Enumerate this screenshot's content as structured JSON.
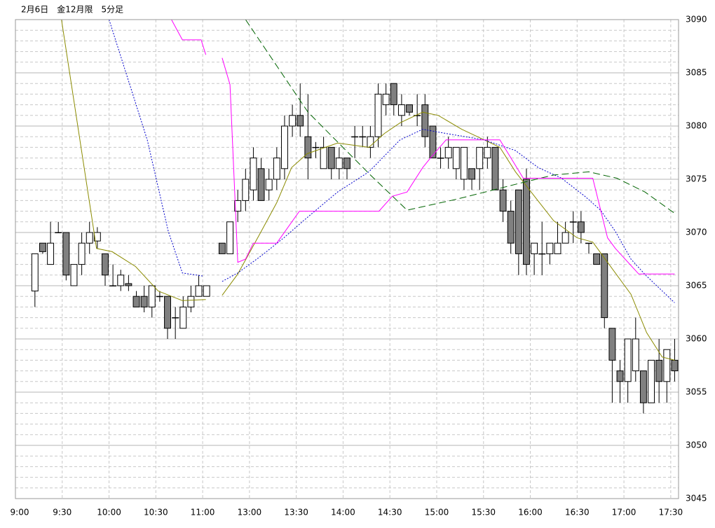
{
  "chart_data": {
    "type": "candlestick",
    "title": "2月6日　金12月限　5分足",
    "xlim": [
      -2.5,
      82.5
    ],
    "ylim": [
      3045,
      3090
    ],
    "yticks": [
      3045,
      3050,
      3055,
      3060,
      3065,
      3070,
      3075,
      3080,
      3085,
      3090
    ],
    "xticks": [
      {
        "value": -2.5,
        "label": "9:00"
      },
      {
        "value": 3.5,
        "label": "9:30"
      },
      {
        "value": 9.5,
        "label": "10:00"
      },
      {
        "value": 15.5,
        "label": "10:30"
      },
      {
        "value": 21.5,
        "label": "11:00"
      },
      {
        "value": 27.5,
        "label": "13:00"
      },
      {
        "value": 33.5,
        "label": "13:30"
      },
      {
        "value": 39.5,
        "label": "14:00"
      },
      {
        "value": 45.5,
        "label": "14:30"
      },
      {
        "value": 51.5,
        "label": "15:00"
      },
      {
        "value": 57.5,
        "label": "15:30"
      },
      {
        "value": 63.5,
        "label": "16:00"
      },
      {
        "value": 69.5,
        "label": "16:30"
      },
      {
        "value": 75.5,
        "label": "17:00"
      },
      {
        "value": 81.5,
        "label": "17:30"
      }
    ],
    "grid": true,
    "up_color": "#ffffff",
    "down_color": "#808080",
    "candles": {
      "x": [
        0,
        1,
        2,
        3,
        4,
        5,
        6,
        7,
        8,
        9,
        10,
        11,
        12,
        13,
        14,
        15,
        16,
        17,
        18,
        19,
        20,
        21,
        22,
        24,
        25,
        26,
        27,
        28,
        29,
        30,
        31,
        32,
        33,
        34,
        35,
        36,
        37,
        38,
        39,
        40,
        41,
        42,
        43,
        44,
        45,
        46,
        47,
        48,
        49,
        50,
        51,
        52,
        53,
        54,
        55,
        56,
        57,
        58,
        59,
        60,
        61,
        62,
        63,
        64,
        65,
        66,
        67,
        68,
        69,
        70,
        71,
        72,
        73,
        74,
        75,
        76,
        77,
        78,
        79,
        80,
        81,
        82
      ],
      "open": [
        3064.5,
        3069,
        3067,
        3070,
        3070,
        3065,
        3067,
        3069,
        3069.2,
        3068,
        3065,
        3065,
        3065.2,
        3064,
        3064,
        3063,
        3064,
        3064,
        3062,
        3061,
        3063,
        3064,
        3064,
        3069,
        3068,
        3072,
        3073,
        3074,
        3076,
        3074,
        3075,
        3076,
        3080,
        3081,
        3079,
        3078,
        3076,
        3078,
        3076,
        3077,
        3079,
        3079,
        3078,
        3079,
        3082,
        3084,
        3081,
        3082,
        3081,
        3082,
        3080,
        3077,
        3077,
        3076,
        3075,
        3076,
        3076,
        3077,
        3078,
        3074,
        3072,
        3074,
        3075,
        3068,
        3068,
        3068,
        3068,
        3069,
        3071,
        3071,
        3069,
        3068,
        3068,
        3061,
        3057,
        3056,
        3057,
        3057,
        3054,
        3058,
        3056,
        3058
      ],
      "high": [
        3068,
        3069,
        3071,
        3071,
        3070,
        3067,
        3070,
        3071,
        3070.5,
        3068,
        3067,
        3066.5,
        3066,
        3064.5,
        3065,
        3065,
        3064.5,
        3064,
        3063,
        3064,
        3065,
        3066,
        3065,
        3069,
        3071,
        3074,
        3076,
        3078,
        3077,
        3076,
        3078,
        3081,
        3082,
        3084,
        3083,
        3078.5,
        3079,
        3078,
        3078,
        3077,
        3080,
        3080,
        3080,
        3084,
        3084,
        3084,
        3083,
        3082,
        3083,
        3083,
        3080,
        3078,
        3079,
        3078,
        3078,
        3076,
        3078,
        3079,
        3078,
        3075,
        3073,
        3074,
        3076,
        3069,
        3071,
        3069,
        3071,
        3071,
        3072,
        3072,
        3069,
        3068,
        3068,
        3061,
        3058,
        3060,
        3062,
        3057,
        3058,
        3060,
        3059,
        3060
      ],
      "low": [
        3063,
        3068,
        3067,
        3070,
        3065.5,
        3065,
        3066,
        3068,
        3068.5,
        3065,
        3065,
        3064.5,
        3064.5,
        3063,
        3062.5,
        3062,
        3063.5,
        3060,
        3060,
        3061,
        3062.5,
        3064,
        3064,
        3068,
        3068,
        3071,
        3072,
        3073,
        3073,
        3073,
        3074,
        3075,
        3079,
        3079,
        3075,
        3077,
        3076,
        3075,
        3075,
        3075,
        3077,
        3078,
        3077,
        3078,
        3081,
        3081,
        3080,
        3081,
        3080,
        3078,
        3077,
        3076,
        3076,
        3075,
        3074,
        3074,
        3074,
        3076,
        3074,
        3071,
        3068,
        3066,
        3066,
        3066,
        3066,
        3067,
        3068,
        3069,
        3069,
        3069,
        3068,
        3067,
        3061,
        3054,
        3054,
        3054,
        3056,
        3053,
        3054,
        3054,
        3054,
        3056
      ],
      "close": [
        3068,
        3068.2,
        3069,
        3070,
        3066,
        3067,
        3069,
        3070,
        3070,
        3066,
        3065,
        3066,
        3065,
        3063,
        3063,
        3065,
        3064,
        3061,
        3062,
        3063,
        3064,
        3065,
        3065,
        3068,
        3071,
        3073,
        3075,
        3077,
        3073,
        3075,
        3077,
        3080,
        3081,
        3080,
        3077,
        3078,
        3078,
        3076,
        3077,
        3076,
        3079,
        3079,
        3079,
        3083,
        3083,
        3082,
        3082,
        3081.3,
        3081,
        3079,
        3077,
        3077,
        3078,
        3078,
        3078,
        3075,
        3078,
        3078,
        3074,
        3072,
        3069,
        3068,
        3067,
        3069,
        3068,
        3069,
        3069,
        3070,
        3071,
        3070,
        3069,
        3067,
        3062,
        3058,
        3056,
        3060,
        3060,
        3054,
        3058,
        3056,
        3059,
        3057
      ]
    },
    "lines": [
      {
        "color": "#8b8b00",
        "style": "solid",
        "x": [
          3.4,
          7.9,
          9.9,
          12.9,
          15.8,
          18.9,
          21.9,
          23,
          24,
          26,
          29,
          31,
          32.9,
          34.9,
          38.8,
          42.8,
          44.8,
          46.8,
          49.7,
          51.7,
          54.7,
          57.6,
          59.6,
          61.6,
          63.6,
          66.5,
          69.5,
          71.5,
          73.4,
          76.4,
          78.4,
          80.4,
          82
        ],
        "values": [
          3090,
          3068.5,
          3068.2,
          3066.8,
          3064.5,
          3063.6,
          3063.7,
          null,
          3064.1,
          3066.1,
          3070.1,
          3072.8,
          3076.1,
          3077.4,
          3078.4,
          3078,
          3079.3,
          3080.3,
          3081.3,
          3081,
          3079.7,
          3078.7,
          3078,
          3075.7,
          3073.8,
          3071.1,
          3069.5,
          3069.1,
          3067.2,
          3064.2,
          3060.6,
          3058.3,
          3058
        ]
      },
      {
        "color": "#0000cc",
        "style": "dotted",
        "x": [
          9.5,
          14.4,
          17.1,
          18.9,
          21.6,
          23,
          24,
          26,
          29,
          31.9,
          34.9,
          38.8,
          42.8,
          46.8,
          49.7,
          52.7,
          57.6,
          61.6,
          64.5,
          67.5,
          70.5,
          72.5,
          74.4,
          76.4,
          78.4,
          82
        ],
        "values": [
          3090,
          3078.7,
          3070.1,
          3066.2,
          3065.9,
          null,
          3065.4,
          3066.2,
          3067.8,
          3069.5,
          3071.4,
          3073.8,
          3075.7,
          3078.7,
          3079.7,
          3079.3,
          3078.7,
          3077.7,
          3076.1,
          3075.1,
          3073.4,
          3072.1,
          3070.1,
          3067.5,
          3065.9,
          3063.4
        ]
      },
      {
        "color": "#006400",
        "style": "dashed",
        "x": [
          27,
          35,
          43,
          47.7,
          53.9,
          62,
          66.5,
          71,
          74.6,
          78.2,
          82
        ],
        "values": [
          3090,
          3081.3,
          3075.4,
          3072.1,
          3073.1,
          3074.6,
          3075.4,
          3075.7,
          3075.1,
          3073.8,
          3071.8
        ]
      },
      {
        "color": "#ff00ff",
        "style": "solid",
        "x": [
          17.5,
          18.9,
          21.3,
          21.9,
          23,
          24,
          25,
          26,
          27,
          28,
          31,
          33.9,
          44.1,
          45.8,
          47.7,
          49.7,
          50.7,
          52.7,
          59.6,
          62.6,
          71.5,
          73.4,
          74.4,
          77.4,
          82
        ],
        "values": [
          3090,
          3088.1,
          3088.1,
          3086.7,
          null,
          3086.4,
          3083.9,
          3067.2,
          3067.5,
          3069,
          3069,
          3072,
          3072,
          3073.4,
          3073.8,
          3076.1,
          3077,
          3078.7,
          3078.7,
          3075.1,
          3075.1,
          3069.5,
          3068.5,
          3066.1,
          3066.1
        ]
      }
    ]
  }
}
